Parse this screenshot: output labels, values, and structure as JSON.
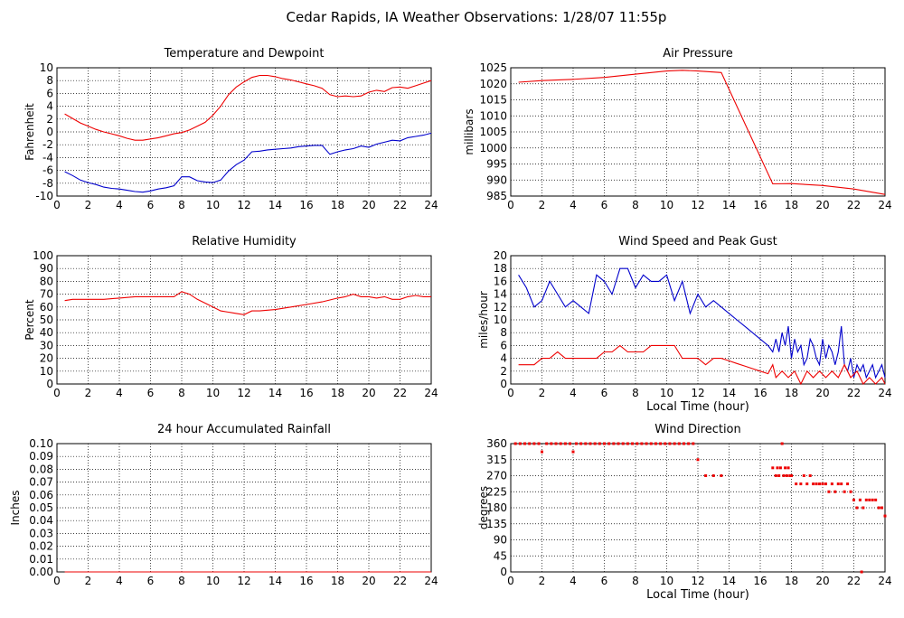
{
  "page": {
    "title": "Cedar Rapids, IA Weather Observations: 1/28/07 11:55p",
    "colors": {
      "red": "#ee0000",
      "blue": "#0000cc",
      "grid": "#000000"
    }
  },
  "chart_data": [
    {
      "id": "temp",
      "type": "line",
      "title": "Temperature and Dewpoint",
      "ylabel": "Fahrenheit",
      "xlabel": "",
      "xlim": [
        0,
        24
      ],
      "ylim": [
        -10,
        10
      ],
      "xticks": [
        0,
        2,
        4,
        6,
        8,
        10,
        12,
        14,
        16,
        18,
        20,
        22,
        24
      ],
      "yticks": [
        -10,
        -8,
        -6,
        -4,
        -2,
        0,
        2,
        4,
        6,
        8,
        10
      ],
      "series": [
        {
          "color": "#ee0000",
          "x": [
            0.5,
            1,
            1.5,
            2,
            2.5,
            3,
            3.5,
            4,
            4.5,
            5,
            5.5,
            6,
            6.5,
            7,
            7.5,
            8,
            8.5,
            9,
            9.5,
            10,
            10.5,
            11,
            11.5,
            12,
            12.5,
            13,
            13.5,
            14,
            14.5,
            15,
            15.5,
            16,
            16.5,
            17,
            17.5,
            18,
            18.5,
            19,
            19.5,
            20,
            20.5,
            21,
            21.5,
            22,
            22.5,
            23,
            23.5,
            24
          ],
          "y": [
            2.8,
            2.1,
            1.4,
            0.9,
            0.4,
            0,
            -0.3,
            -0.6,
            -1,
            -1.3,
            -1.3,
            -1.1,
            -0.9,
            -0.6,
            -0.3,
            -0.1,
            0.3,
            0.9,
            1.5,
            2.6,
            4,
            5.8,
            7,
            7.8,
            8.5,
            8.8,
            8.8,
            8.6,
            8.3,
            8.1,
            7.8,
            7.5,
            7.2,
            6.8,
            5.8,
            5.5,
            5.6,
            5.5,
            5.6,
            6.2,
            6.5,
            6.3,
            6.9,
            7,
            6.8,
            7.2,
            7.6,
            8
          ]
        },
        {
          "color": "#0000cc",
          "x": [
            0.5,
            1,
            1.5,
            2,
            2.5,
            3,
            3.5,
            4,
            4.5,
            5,
            5.5,
            6,
            6.5,
            7,
            7.5,
            8,
            8.5,
            9,
            9.5,
            10,
            10.5,
            11,
            11.5,
            12,
            12.5,
            13,
            13.5,
            14,
            14.5,
            15,
            15.5,
            16,
            16.5,
            17,
            17.5,
            18,
            18.5,
            19,
            19.5,
            20,
            20.5,
            21,
            21.5,
            22,
            22.5,
            23,
            23.5,
            24
          ],
          "y": [
            -6.2,
            -6.8,
            -7.5,
            -7.9,
            -8.2,
            -8.6,
            -8.8,
            -8.9,
            -9.1,
            -9.3,
            -9.4,
            -9.2,
            -8.9,
            -8.7,
            -8.4,
            -7,
            -7,
            -7.6,
            -7.8,
            -7.9,
            -7.5,
            -6.1,
            -5.1,
            -4.4,
            -3.1,
            -3,
            -2.8,
            -2.7,
            -2.6,
            -2.5,
            -2.3,
            -2.2,
            -2.1,
            -2.1,
            -3.5,
            -3.1,
            -2.8,
            -2.6,
            -2.2,
            -2.4,
            -1.9,
            -1.6,
            -1.3,
            -1.4,
            -0.9,
            -0.7,
            -0.5,
            -0.2
          ]
        }
      ]
    },
    {
      "id": "pres",
      "type": "line",
      "title": "Air Pressure",
      "ylabel": "millibars",
      "xlabel": "",
      "xlim": [
        0,
        24
      ],
      "ylim": [
        985,
        1025
      ],
      "xticks": [
        0,
        2,
        4,
        6,
        8,
        10,
        12,
        14,
        16,
        18,
        20,
        22,
        24
      ],
      "yticks": [
        985,
        990,
        995,
        1000,
        1005,
        1010,
        1015,
        1020,
        1025
      ],
      "series": [
        {
          "color": "#ee0000",
          "x": [
            0.5,
            2,
            4,
            6,
            8,
            10,
            11,
            12,
            13.5,
            16.8,
            18,
            20,
            22,
            24
          ],
          "y": [
            1020.5,
            1021,
            1021.4,
            1022,
            1023,
            1024,
            1024.2,
            1024,
            1023.5,
            988.8,
            988.9,
            988.3,
            987.2,
            985.5
          ]
        }
      ]
    },
    {
      "id": "rh",
      "type": "line",
      "title": "Relative Humidity",
      "ylabel": "Percent",
      "xlabel": "",
      "xlim": [
        0,
        24
      ],
      "ylim": [
        0,
        100
      ],
      "xticks": [
        0,
        2,
        4,
        6,
        8,
        10,
        12,
        14,
        16,
        18,
        20,
        22,
        24
      ],
      "yticks": [
        0,
        10,
        20,
        30,
        40,
        50,
        60,
        70,
        80,
        90,
        100
      ],
      "series": [
        {
          "color": "#ee0000",
          "x": [
            0.5,
            1,
            2,
            3,
            4,
            5,
            6,
            7,
            7.5,
            8,
            8.5,
            9,
            9.5,
            10,
            10.5,
            11,
            11.5,
            12,
            12.5,
            13,
            14,
            15,
            16,
            17,
            18,
            18.5,
            19,
            19.5,
            20,
            20.5,
            21,
            21.5,
            22,
            22.5,
            23,
            23.5,
            24
          ],
          "y": [
            65,
            66,
            66,
            66,
            67,
            68,
            68,
            68,
            68,
            72,
            70,
            66,
            63,
            60,
            57,
            56,
            55,
            54,
            57,
            57,
            58,
            60,
            62,
            64,
            67,
            68,
            70,
            68,
            68,
            67,
            68,
            66,
            66,
            68,
            69,
            68,
            68
          ]
        }
      ]
    },
    {
      "id": "wind",
      "type": "line",
      "title": "Wind Speed and Peak Gust",
      "ylabel": "miles/hour",
      "xlabel": "Local Time (hour)",
      "xlim": [
        0,
        24
      ],
      "ylim": [
        0,
        20
      ],
      "xticks": [
        0,
        2,
        4,
        6,
        8,
        10,
        12,
        14,
        16,
        18,
        20,
        22,
        24
      ],
      "yticks": [
        0,
        2,
        4,
        6,
        8,
        10,
        12,
        14,
        16,
        18,
        20
      ],
      "series": [
        {
          "color": "#0000cc",
          "x": [
            0.5,
            1,
            1.5,
            2,
            2.5,
            3,
            3.5,
            4,
            4.5,
            5,
            5.5,
            6,
            6.5,
            7,
            7.5,
            8,
            8.5,
            9,
            9.5,
            10,
            10.5,
            11,
            11.5,
            12,
            12.5,
            13,
            13.5,
            14,
            14.5,
            15,
            15.5,
            16,
            16.5,
            16.8,
            17,
            17.2,
            17.4,
            17.6,
            17.8,
            18,
            18.2,
            18.4,
            18.6,
            18.8,
            19,
            19.2,
            19.4,
            19.6,
            19.8,
            20,
            20.2,
            20.4,
            20.6,
            20.8,
            21,
            21.2,
            21.4,
            21.6,
            21.8,
            22,
            22.2,
            22.4,
            22.6,
            22.8,
            23,
            23.2,
            23.4,
            23.6,
            23.8,
            24
          ],
          "y": [
            17,
            15,
            12,
            13,
            16,
            14,
            12,
            13,
            12,
            11,
            17,
            16,
            14,
            18,
            18,
            15,
            17,
            16,
            16,
            17,
            13,
            16,
            11,
            14,
            12,
            13,
            12,
            11,
            10,
            9,
            8,
            7,
            6,
            5,
            7,
            5,
            8,
            6,
            9,
            4,
            7,
            5,
            6,
            3,
            4,
            7,
            6,
            4,
            3,
            7,
            4,
            6,
            5,
            3,
            5,
            9,
            3,
            2,
            4,
            1,
            3,
            2,
            3,
            1,
            2,
            3,
            1,
            2,
            3,
            1
          ]
        },
        {
          "color": "#ee0000",
          "x": [
            0.5,
            1,
            1.5,
            2,
            2.5,
            3,
            3.5,
            4,
            4.5,
            5,
            5.5,
            6,
            6.5,
            7,
            7.5,
            8,
            8.5,
            9,
            9.5,
            10,
            10.5,
            11,
            11.5,
            12,
            12.5,
            13,
            13.5,
            14,
            14.5,
            15,
            15.5,
            16,
            16.5,
            16.8,
            17,
            17.4,
            17.8,
            18.2,
            18.6,
            19,
            19.4,
            19.8,
            20.2,
            20.6,
            21,
            21.4,
            21.8,
            22.2,
            22.6,
            23,
            23.4,
            23.8,
            24
          ],
          "y": [
            3,
            3,
            3,
            4,
            4,
            5,
            4,
            4,
            4,
            4,
            4,
            5,
            5,
            6,
            5,
            5,
            5,
            6,
            6,
            6,
            6,
            4,
            4,
            4,
            3,
            4,
            4,
            3.6,
            3.2,
            2.8,
            2.4,
            2,
            1.6,
            3,
            1,
            2,
            1,
            2,
            0,
            2,
            1,
            2,
            1,
            2,
            1,
            3,
            1,
            2,
            0,
            1,
            0,
            1,
            0
          ]
        }
      ]
    },
    {
      "id": "rain",
      "type": "line",
      "title": "24 hour Accumulated Rainfall",
      "ylabel": "Inches",
      "xlabel": "",
      "xlim": [
        0,
        24
      ],
      "ylim": [
        0,
        0.1
      ],
      "xticks": [
        0,
        2,
        4,
        6,
        8,
        10,
        12,
        14,
        16,
        18,
        20,
        22,
        24
      ],
      "yticks": [
        "0.00",
        "0.01",
        "0.02",
        "0.03",
        "0.04",
        "0.05",
        "0.06",
        "0.07",
        "0.08",
        "0.09",
        "0.10"
      ],
      "series": [
        {
          "color": "#ee0000",
          "x": [
            0.5,
            24
          ],
          "y": [
            0,
            0
          ]
        }
      ]
    },
    {
      "id": "dir",
      "type": "scatter",
      "title": "Wind Direction",
      "ylabel": "degrees",
      "xlabel": "Local Time (hour)",
      "xlim": [
        0,
        24
      ],
      "ylim": [
        0,
        360
      ],
      "xticks": [
        0,
        2,
        4,
        6,
        8,
        10,
        12,
        14,
        16,
        18,
        20,
        22,
        24
      ],
      "yticks": [
        0,
        45,
        90,
        135,
        180,
        225,
        270,
        315,
        360
      ],
      "series": [
        {
          "color": "#ee0000",
          "x": [
            0.3,
            0.6,
            0.9,
            1.2,
            1.5,
            1.8,
            2.0,
            2.3,
            2.6,
            2.9,
            3.2,
            3.5,
            3.8,
            4.0,
            4.2,
            4.5,
            4.8,
            5.1,
            5.4,
            5.7,
            6.0,
            6.3,
            6.6,
            6.9,
            7.2,
            7.5,
            7.8,
            8.1,
            8.4,
            8.7,
            9.0,
            9.3,
            9.6,
            9.9,
            10.2,
            10.5,
            10.8,
            11.1,
            11.4,
            11.7,
            12.0,
            12.5,
            13.0,
            13.5,
            16.8,
            17.0,
            17.1,
            17.2,
            17.3,
            17.4,
            17.5,
            17.6,
            17.7,
            17.8,
            17.9,
            18.0,
            18.3,
            18.6,
            18.8,
            19.0,
            19.2,
            19.4,
            19.6,
            19.8,
            20.0,
            20.2,
            20.4,
            20.6,
            20.8,
            21.0,
            21.2,
            21.4,
            21.6,
            21.8,
            22.0,
            22.2,
            22.4,
            22.5,
            22.6,
            22.8,
            23.0,
            23.2,
            23.4,
            23.6,
            23.8,
            24.0
          ],
          "y": [
            360,
            360,
            360,
            360,
            360,
            360,
            337,
            360,
            360,
            360,
            360,
            360,
            360,
            337,
            360,
            360,
            360,
            360,
            360,
            360,
            360,
            360,
            360,
            360,
            360,
            360,
            360,
            360,
            360,
            360,
            360,
            360,
            360,
            360,
            360,
            360,
            360,
            360,
            360,
            360,
            315,
            270,
            270,
            270,
            292,
            270,
            292,
            270,
            292,
            360,
            270,
            292,
            270,
            292,
            270,
            270,
            247,
            247,
            270,
            247,
            270,
            247,
            247,
            247,
            247,
            247,
            225,
            247,
            225,
            247,
            247,
            225,
            247,
            225,
            202,
            180,
            202,
            0,
            180,
            202,
            202,
            202,
            202,
            180,
            180,
            157
          ]
        }
      ]
    }
  ]
}
